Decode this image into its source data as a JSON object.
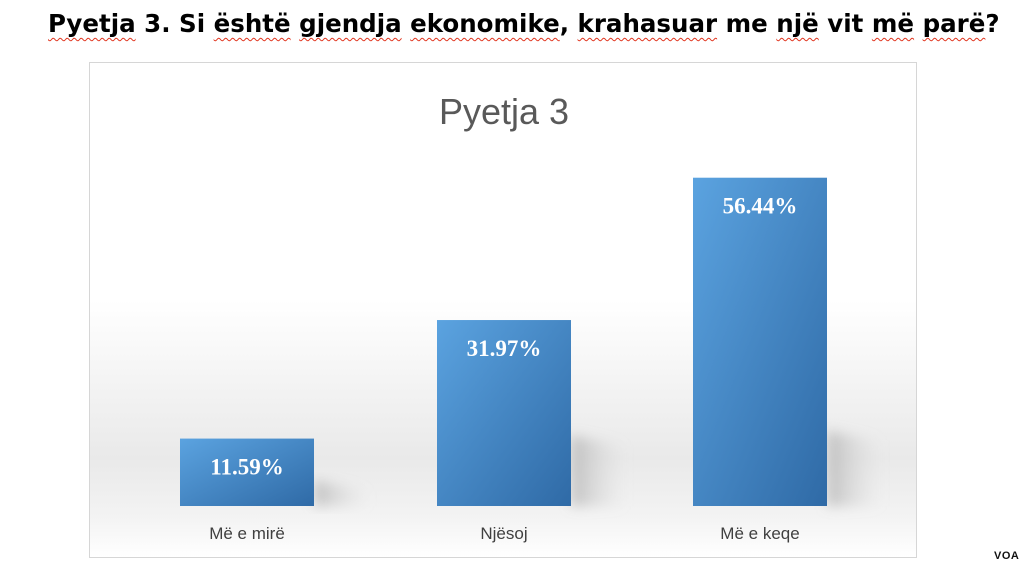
{
  "heading": {
    "part1": "Pyetja",
    "part2": " 3. Si ",
    "part3": "është",
    "part4": " ",
    "part5": "gjendja",
    "part6": " ",
    "part7": "ekonomike",
    "part8": ", ",
    "part9": "krahasuar",
    "part10": " me ",
    "part11": "një",
    "part12": " vit ",
    "part13": "më",
    "part14": " ",
    "part15": "parë",
    "part16": "?"
  },
  "watermark": "VOA",
  "colors": {
    "bar_light": "#5ba3e0",
    "bar_dark": "#2f6aa6",
    "label": "#ffffff",
    "title": "#595959",
    "category": "#404040"
  },
  "chart_data": {
    "type": "bar",
    "title": "Pyetja 3",
    "categories": [
      "Më e mirë",
      "Njësoj",
      "Më e keqe"
    ],
    "values": [
      11.59,
      31.97,
      56.44
    ],
    "data_labels": [
      "11.59%",
      "31.97%",
      "56.44%"
    ],
    "ylim": [
      0,
      60
    ],
    "grid": false,
    "legend": "none"
  }
}
